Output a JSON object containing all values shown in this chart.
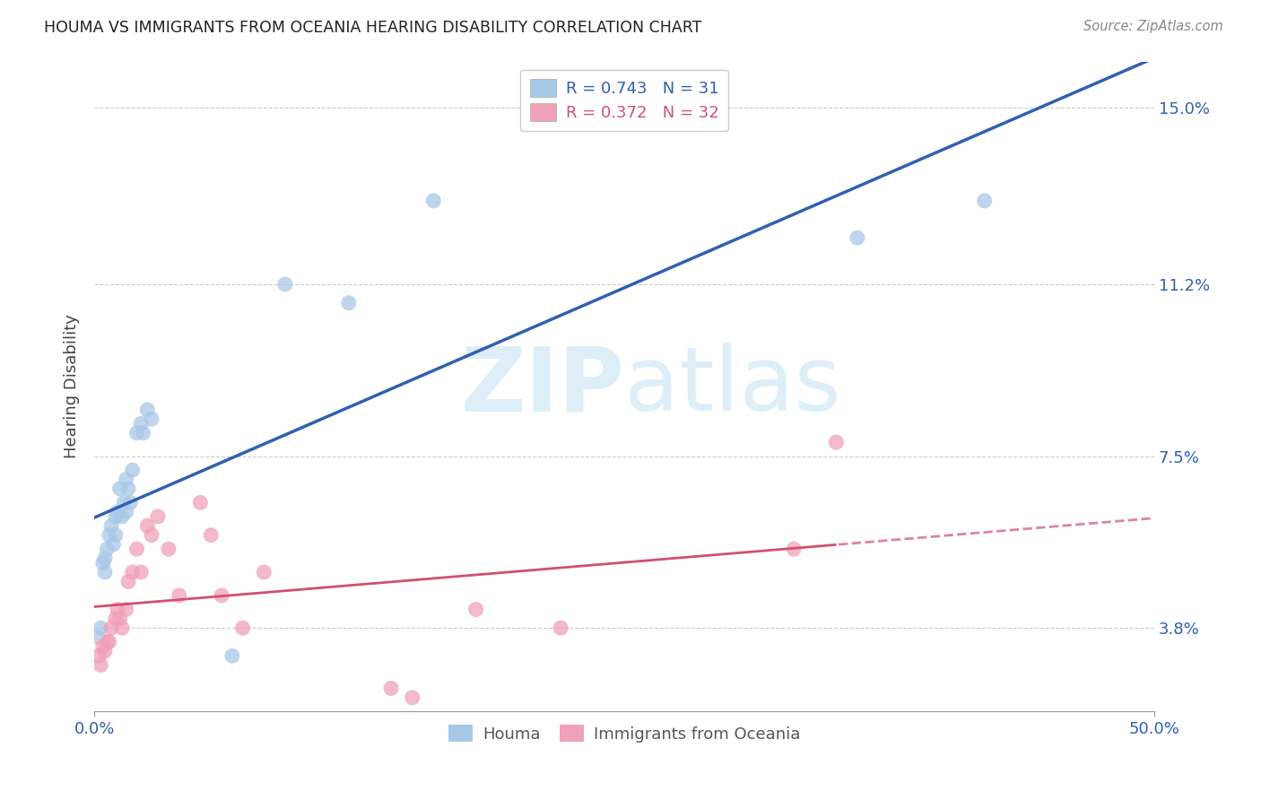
{
  "title": "HOUMA VS IMMIGRANTS FROM OCEANIA HEARING DISABILITY CORRELATION CHART",
  "source": "Source: ZipAtlas.com",
  "ylabel": "Hearing Disability",
  "xmin": 0.0,
  "xmax": 0.5,
  "ymin": 0.02,
  "ymax": 0.16,
  "yticks": [
    0.038,
    0.075,
    0.112,
    0.15
  ],
  "ytick_labels": [
    "3.8%",
    "7.5%",
    "11.2%",
    "15.0%"
  ],
  "xtick_labels": [
    "0.0%",
    "50.0%"
  ],
  "xticks": [
    0.0,
    0.5
  ],
  "legend_r1": "R = 0.743",
  "legend_n1": "N = 31",
  "legend_r2": "R = 0.372",
  "legend_n2": "N = 32",
  "blue_color": "#a8c8e8",
  "blue_line_color": "#3060b0",
  "pink_color": "#f0a0b8",
  "pink_line_color": "#d05070",
  "watermark_color": "#ddeef8",
  "houma_x": [
    0.002,
    0.003,
    0.004,
    0.005,
    0.005,
    0.006,
    0.007,
    0.008,
    0.009,
    0.01,
    0.01,
    0.011,
    0.012,
    0.013,
    0.014,
    0.015,
    0.015,
    0.016,
    0.017,
    0.018,
    0.02,
    0.022,
    0.023,
    0.025,
    0.027,
    0.065,
    0.09,
    0.16,
    0.36,
    0.42,
    0.12
  ],
  "houma_y": [
    0.036,
    0.038,
    0.052,
    0.05,
    0.053,
    0.055,
    0.058,
    0.06,
    0.056,
    0.062,
    0.058,
    0.063,
    0.068,
    0.062,
    0.065,
    0.063,
    0.07,
    0.068,
    0.065,
    0.072,
    0.08,
    0.082,
    0.08,
    0.085,
    0.083,
    0.032,
    0.112,
    0.13,
    0.122,
    0.13,
    0.108
  ],
  "oceania_x": [
    0.002,
    0.003,
    0.004,
    0.005,
    0.006,
    0.007,
    0.008,
    0.01,
    0.011,
    0.012,
    0.013,
    0.015,
    0.016,
    0.018,
    0.02,
    0.022,
    0.025,
    0.027,
    0.03,
    0.035,
    0.04,
    0.05,
    0.055,
    0.06,
    0.07,
    0.08,
    0.14,
    0.15,
    0.18,
    0.22,
    0.33,
    0.35
  ],
  "oceania_y": [
    0.032,
    0.03,
    0.034,
    0.033,
    0.035,
    0.035,
    0.038,
    0.04,
    0.042,
    0.04,
    0.038,
    0.042,
    0.048,
    0.05,
    0.055,
    0.05,
    0.06,
    0.058,
    0.062,
    0.055,
    0.045,
    0.065,
    0.058,
    0.045,
    0.038,
    0.05,
    0.025,
    0.023,
    0.042,
    0.038,
    0.055,
    0.078
  ]
}
